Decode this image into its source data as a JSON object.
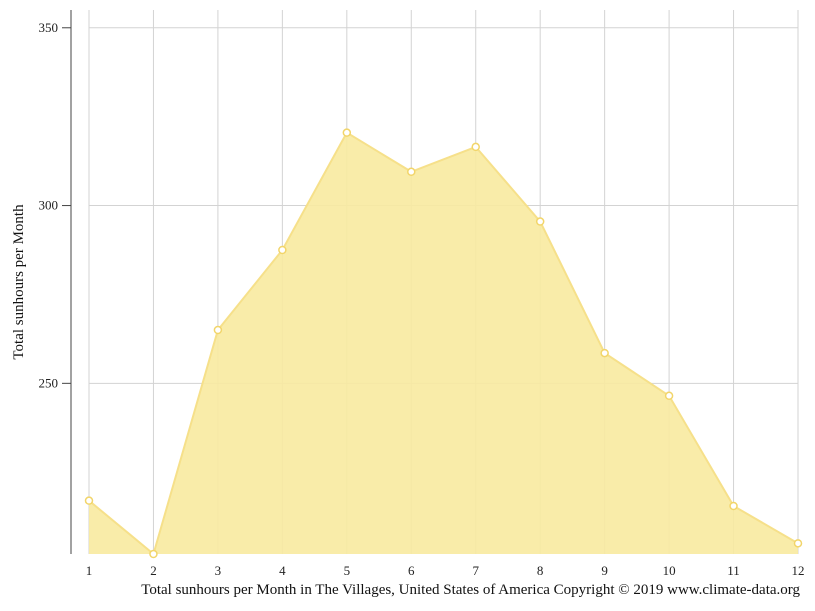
{
  "chart_data": {
    "type": "area",
    "title": "",
    "ylabel": "Total sunhours per Month",
    "caption": "Total sunhours per Month in The Villages, United States of America Copyright © 2019 www.climate-data.org",
    "x": [
      "1",
      "2",
      "3",
      "4",
      "5",
      "6",
      "7",
      "8",
      "9",
      "10",
      "11",
      "12"
    ],
    "values": [
      217,
      202,
      265,
      287.5,
      320.5,
      309.5,
      316.5,
      295.5,
      258.5,
      246.5,
      215.5,
      205
    ],
    "ylim": [
      202,
      355
    ],
    "yticks": [
      250,
      300,
      350
    ],
    "grid": true,
    "colors": {
      "fill": "#f8eaa0",
      "line": "#f6e08a",
      "marker_stroke": "#f2d56a",
      "marker_fill": "#ffffff",
      "grid": "#d3d3d3",
      "axis": "#444444"
    }
  }
}
